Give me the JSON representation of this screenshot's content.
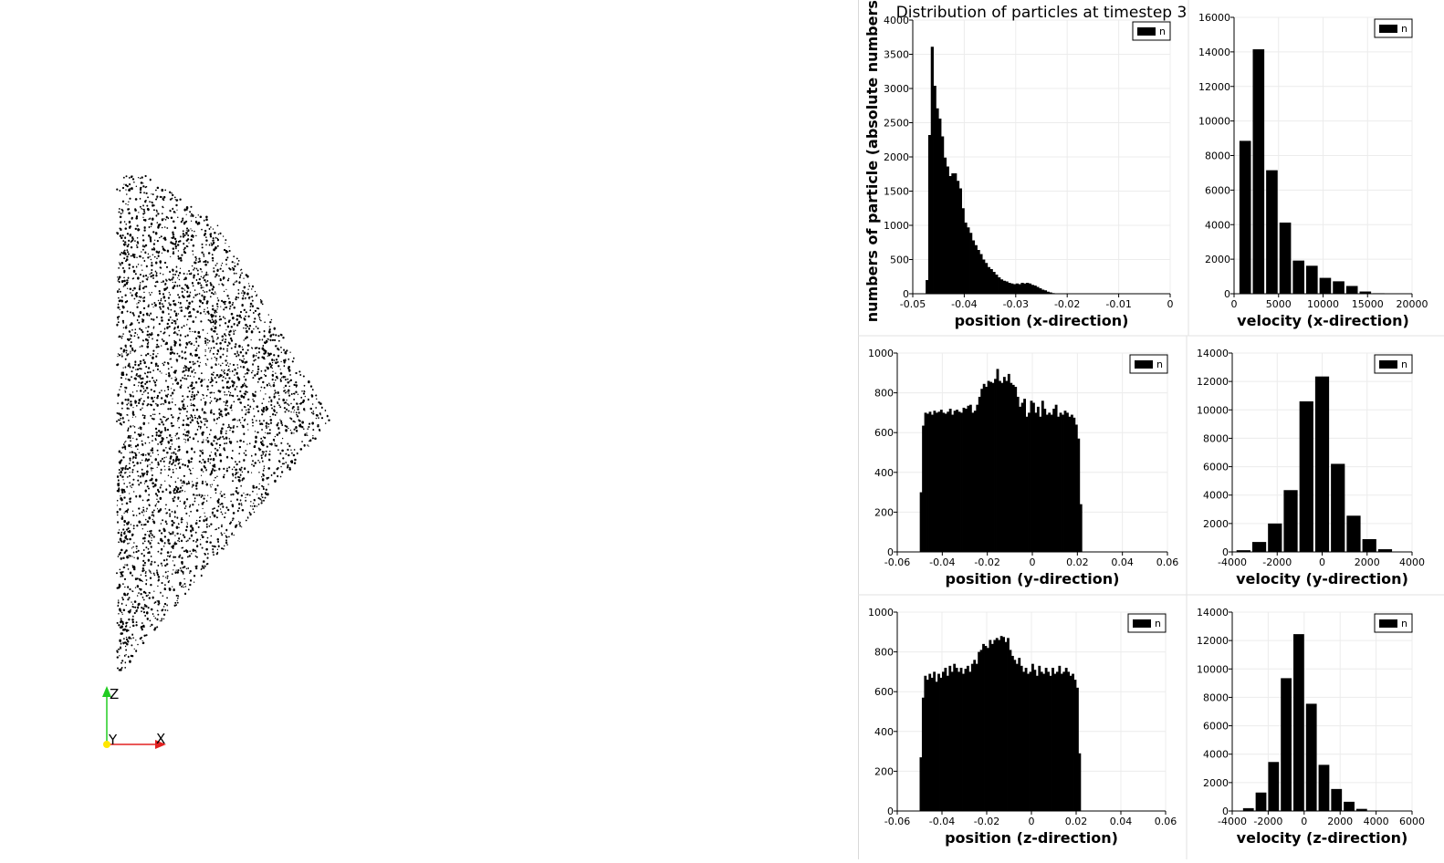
{
  "render_view": {
    "orientation_axes": {
      "z": "Z",
      "y": "Y",
      "x": "X"
    },
    "colors": {
      "particles": "#000000",
      "x_axis": "#e32020",
      "y_axis": "#ffe600",
      "z_axis": "#22cc22"
    }
  },
  "figure": {
    "title": "Distribution of particles at timestep 3",
    "shared_ylabel": "numbers of particle (absolute numbers)",
    "bar_color": "#000000",
    "grid": true,
    "legend_placement": "top-right"
  },
  "chart_data": [
    {
      "type": "bar",
      "xlabel": "position (x-direction)",
      "xlim": [
        -0.05,
        0
      ],
      "ylim": [
        0,
        4000
      ],
      "xticks": [
        "-0.05",
        "-0.04",
        "-0.03",
        "-0.02",
        "-0.01",
        "0"
      ],
      "yticks": [
        "0",
        "500",
        "1000",
        "1500",
        "2000",
        "2500",
        "3000",
        "3500",
        "4000"
      ],
      "legend": [
        "n"
      ],
      "bin_start": -0.05,
      "bin_width": 0.0005,
      "values": [
        0,
        0,
        0,
        0,
        0,
        200,
        2320,
        3610,
        3040,
        2710,
        2560,
        2300,
        1990,
        1860,
        1720,
        1760,
        1760,
        1650,
        1540,
        1250,
        1040,
        970,
        890,
        780,
        710,
        640,
        580,
        500,
        450,
        390,
        360,
        320,
        280,
        240,
        210,
        190,
        180,
        160,
        150,
        140,
        150,
        140,
        160,
        150,
        160,
        150,
        130,
        120,
        100,
        80,
        60,
        50,
        30,
        20,
        10,
        5,
        0,
        0,
        0,
        0,
        0,
        0,
        0,
        0,
        0,
        0,
        0,
        0,
        0,
        0,
        0,
        0,
        0,
        0,
        0,
        0,
        0,
        0,
        0,
        0,
        0,
        0,
        0,
        0,
        0,
        0,
        0,
        0,
        0,
        0,
        0,
        0,
        0,
        0,
        0,
        0,
        0,
        0,
        0,
        0
      ]
    },
    {
      "type": "bar",
      "xlabel": "velocity (x-direction)",
      "xlim": [
        0,
        20000
      ],
      "ylim": [
        0,
        16000
      ],
      "xticks": [
        "0",
        "5000",
        "10000",
        "15000",
        "20000"
      ],
      "yticks": [
        "0",
        "2000",
        "4000",
        "6000",
        "8000",
        "10000",
        "12000",
        "14000",
        "16000"
      ],
      "legend": [
        "n"
      ],
      "bin_start": 500,
      "bin_width": 1500,
      "values": [
        8850,
        14150,
        7150,
        4120,
        1920,
        1620,
        920,
        720,
        450,
        130,
        30
      ]
    },
    {
      "type": "bar",
      "xlabel": "position (y-direction)",
      "xlim": [
        -0.06,
        0.06
      ],
      "ylim": [
        0,
        1000
      ],
      "xticks": [
        "-0.06",
        "-0.04",
        "-0.02",
        "0",
        "0.02",
        "0.04",
        "0.06"
      ],
      "yticks": [
        "0",
        "200",
        "400",
        "600",
        "800",
        "1000"
      ],
      "legend": [
        "n"
      ],
      "bin_start": -0.05,
      "bin_width": 0.001,
      "values": [
        300,
        635,
        700,
        695,
        705,
        690,
        710,
        700,
        705,
        715,
        700,
        695,
        705,
        720,
        690,
        710,
        715,
        705,
        700,
        725,
        720,
        735,
        740,
        700,
        710,
        740,
        780,
        820,
        845,
        830,
        860,
        855,
        850,
        870,
        920,
        860,
        850,
        880,
        860,
        895,
        850,
        840,
        830,
        780,
        730,
        750,
        770,
        680,
        700,
        760,
        750,
        700,
        730,
        680,
        760,
        720,
        690,
        700,
        690,
        720,
        740,
        680,
        700,
        690,
        710,
        700,
        680,
        690,
        675,
        640,
        570,
        240
      ]
    },
    {
      "type": "bar",
      "xlabel": "velocity (y-direction)",
      "xlim": [
        -4000,
        4000
      ],
      "ylim": [
        0,
        14000
      ],
      "xticks": [
        "-4000",
        "-2000",
        "0",
        "2000",
        "4000"
      ],
      "yticks": [
        "0",
        "2000",
        "4000",
        "6000",
        "8000",
        "10000",
        "12000",
        "14000"
      ],
      "legend": [
        "n"
      ],
      "bin_start": -3850,
      "bin_width": 700,
      "values": [
        120,
        700,
        2000,
        4350,
        10600,
        12350,
        6200,
        2550,
        900,
        190
      ]
    },
    {
      "type": "bar",
      "xlabel": "position (z-direction)",
      "xlim": [
        -0.06,
        0.06
      ],
      "ylim": [
        0,
        1000
      ],
      "xticks": [
        "-0.06",
        "-0.04",
        "-0.02",
        "0",
        "0.02",
        "0.04",
        "0.06"
      ],
      "yticks": [
        "0",
        "200",
        "400",
        "600",
        "800",
        "1000"
      ],
      "legend": [
        "n"
      ],
      "bin_start": -0.05,
      "bin_width": 0.001,
      "values": [
        270,
        570,
        680,
        660,
        690,
        670,
        700,
        650,
        690,
        670,
        700,
        720,
        680,
        730,
        700,
        740,
        720,
        700,
        720,
        690,
        715,
        730,
        700,
        740,
        760,
        740,
        800,
        810,
        840,
        830,
        820,
        860,
        840,
        860,
        870,
        860,
        880,
        875,
        850,
        870,
        810,
        780,
        760,
        740,
        770,
        730,
        700,
        720,
        690,
        700,
        740,
        710,
        680,
        730,
        700,
        690,
        720,
        700,
        680,
        720,
        690,
        700,
        730,
        690,
        700,
        720,
        700,
        680,
        690,
        660,
        620,
        290
      ]
    },
    {
      "type": "bar",
      "xlabel": "velocity (z-direction)",
      "xlim": [
        -4000,
        6000
      ],
      "ylim": [
        0,
        14000
      ],
      "xticks": [
        "-4000",
        "-2000",
        "0",
        "2000",
        "4000",
        "6000"
      ],
      "yticks": [
        "0",
        "2000",
        "4000",
        "6000",
        "8000",
        "10000",
        "12000",
        "14000"
      ],
      "legend": [
        "n"
      ],
      "bin_start": -3450,
      "bin_width": 700,
      "values": [
        200,
        1300,
        3450,
        9350,
        12450,
        7550,
        3250,
        1550,
        650,
        150
      ]
    }
  ]
}
